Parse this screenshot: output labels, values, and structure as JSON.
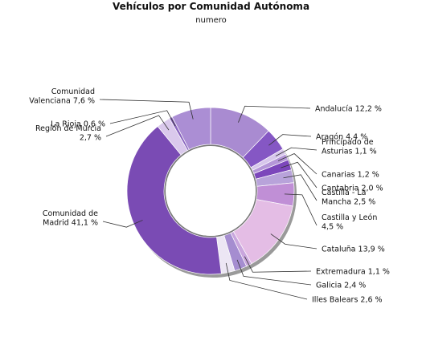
{
  "chart_data": {
    "type": "pie",
    "title": "Vehículos por Comunidad Autónoma",
    "subtitle": "numero",
    "slices": [
      {
        "name": "Andalucía",
        "label": "Andalucía 12,2 %",
        "value": 12.2,
        "color": "#a98bd1"
      },
      {
        "name": "Aragón",
        "label": "Aragón 4,4 %",
        "value": 4.4,
        "color": "#8557c4"
      },
      {
        "name": "Principado de Asturias",
        "label": "Principado de|Asturias 1,1 %",
        "value": 1.1,
        "color": "#d7c6eb"
      },
      {
        "name": "Canarias",
        "label": "Canarias 1,2 %",
        "value": 1.2,
        "color": "#b597d8"
      },
      {
        "name": "Cantabria",
        "label": "Cantabria 2,0 %",
        "value": 2.0,
        "color": "#7c47bb"
      },
      {
        "name": "Castilla - La Mancha",
        "label": "Castilla - La|Mancha 2,5 %",
        "value": 2.5,
        "color": "#b8a3da"
      },
      {
        "name": "Castilla y León",
        "label": "Castilla y León|4,5 %",
        "value": 4.5,
        "color": "#c08fd6"
      },
      {
        "name": "Cataluña",
        "label": "Cataluña 13,9 %",
        "value": 13.9,
        "color": "#e4bde5"
      },
      {
        "name": "Extremadura",
        "label": "Extremadura 1,1 %",
        "value": 1.1,
        "color": "#c9a6dd"
      },
      {
        "name": "Galicia",
        "label": "Galicia 2,4 %",
        "value": 2.4,
        "color": "#a58dd0"
      },
      {
        "name": "Illes Balears",
        "label": "Illes Balears 2,6 %",
        "value": 2.6,
        "color": "#ece6f4"
      },
      {
        "name": "Comunidad de Madrid",
        "label": "Comunidad de|Madrid 41,1 %",
        "value": 41.1,
        "color": "#7a4bb4"
      },
      {
        "name": "Región de Murcia",
        "label": "Región de Murcia|2,7 %",
        "value": 2.7,
        "color": "#dac9ec"
      },
      {
        "name": "La Rioja",
        "label": "La Rioja 0,6 %",
        "value": 0.6,
        "color": "#8a66bf"
      },
      {
        "name": "Comunidad Valenciana",
        "label": "Comunidad|Valenciana 7,6 %",
        "value": 7.6,
        "color": "#ab8ed4"
      }
    ]
  }
}
